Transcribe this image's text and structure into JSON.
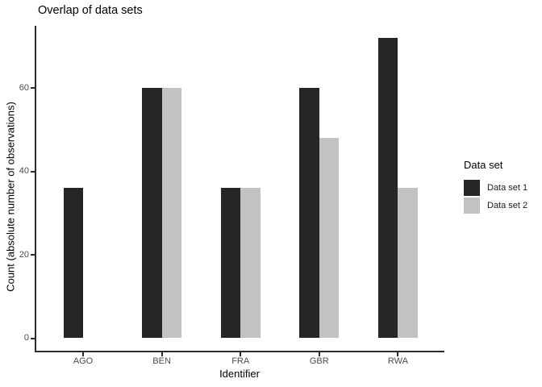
{
  "chart_data": {
    "type": "bar",
    "title": "Overlap of data sets",
    "xlabel": "Identifier",
    "ylabel": "Count (absolute number of observations)",
    "categories": [
      "AGO",
      "BEN",
      "FRA",
      "GBR",
      "RWA"
    ],
    "series": [
      {
        "name": "Data set 1",
        "color": "#262626",
        "values": [
          36,
          60,
          36,
          60,
          72
        ]
      },
      {
        "name": "Data set 2",
        "color": "#c2c2c2",
        "values": [
          null,
          60,
          36,
          48,
          36
        ]
      }
    ],
    "yticks": [
      0,
      20,
      40,
      60
    ],
    "ylim": [
      0,
      75
    ],
    "grid": false,
    "legend": {
      "title": "Data set",
      "position": "right",
      "entries": [
        "Data set 1",
        "Data set 2"
      ]
    },
    "colors": {
      "axis_line": "#2b2b2b",
      "tick_label": "#4d4d4d",
      "title_text": "#000000"
    }
  }
}
